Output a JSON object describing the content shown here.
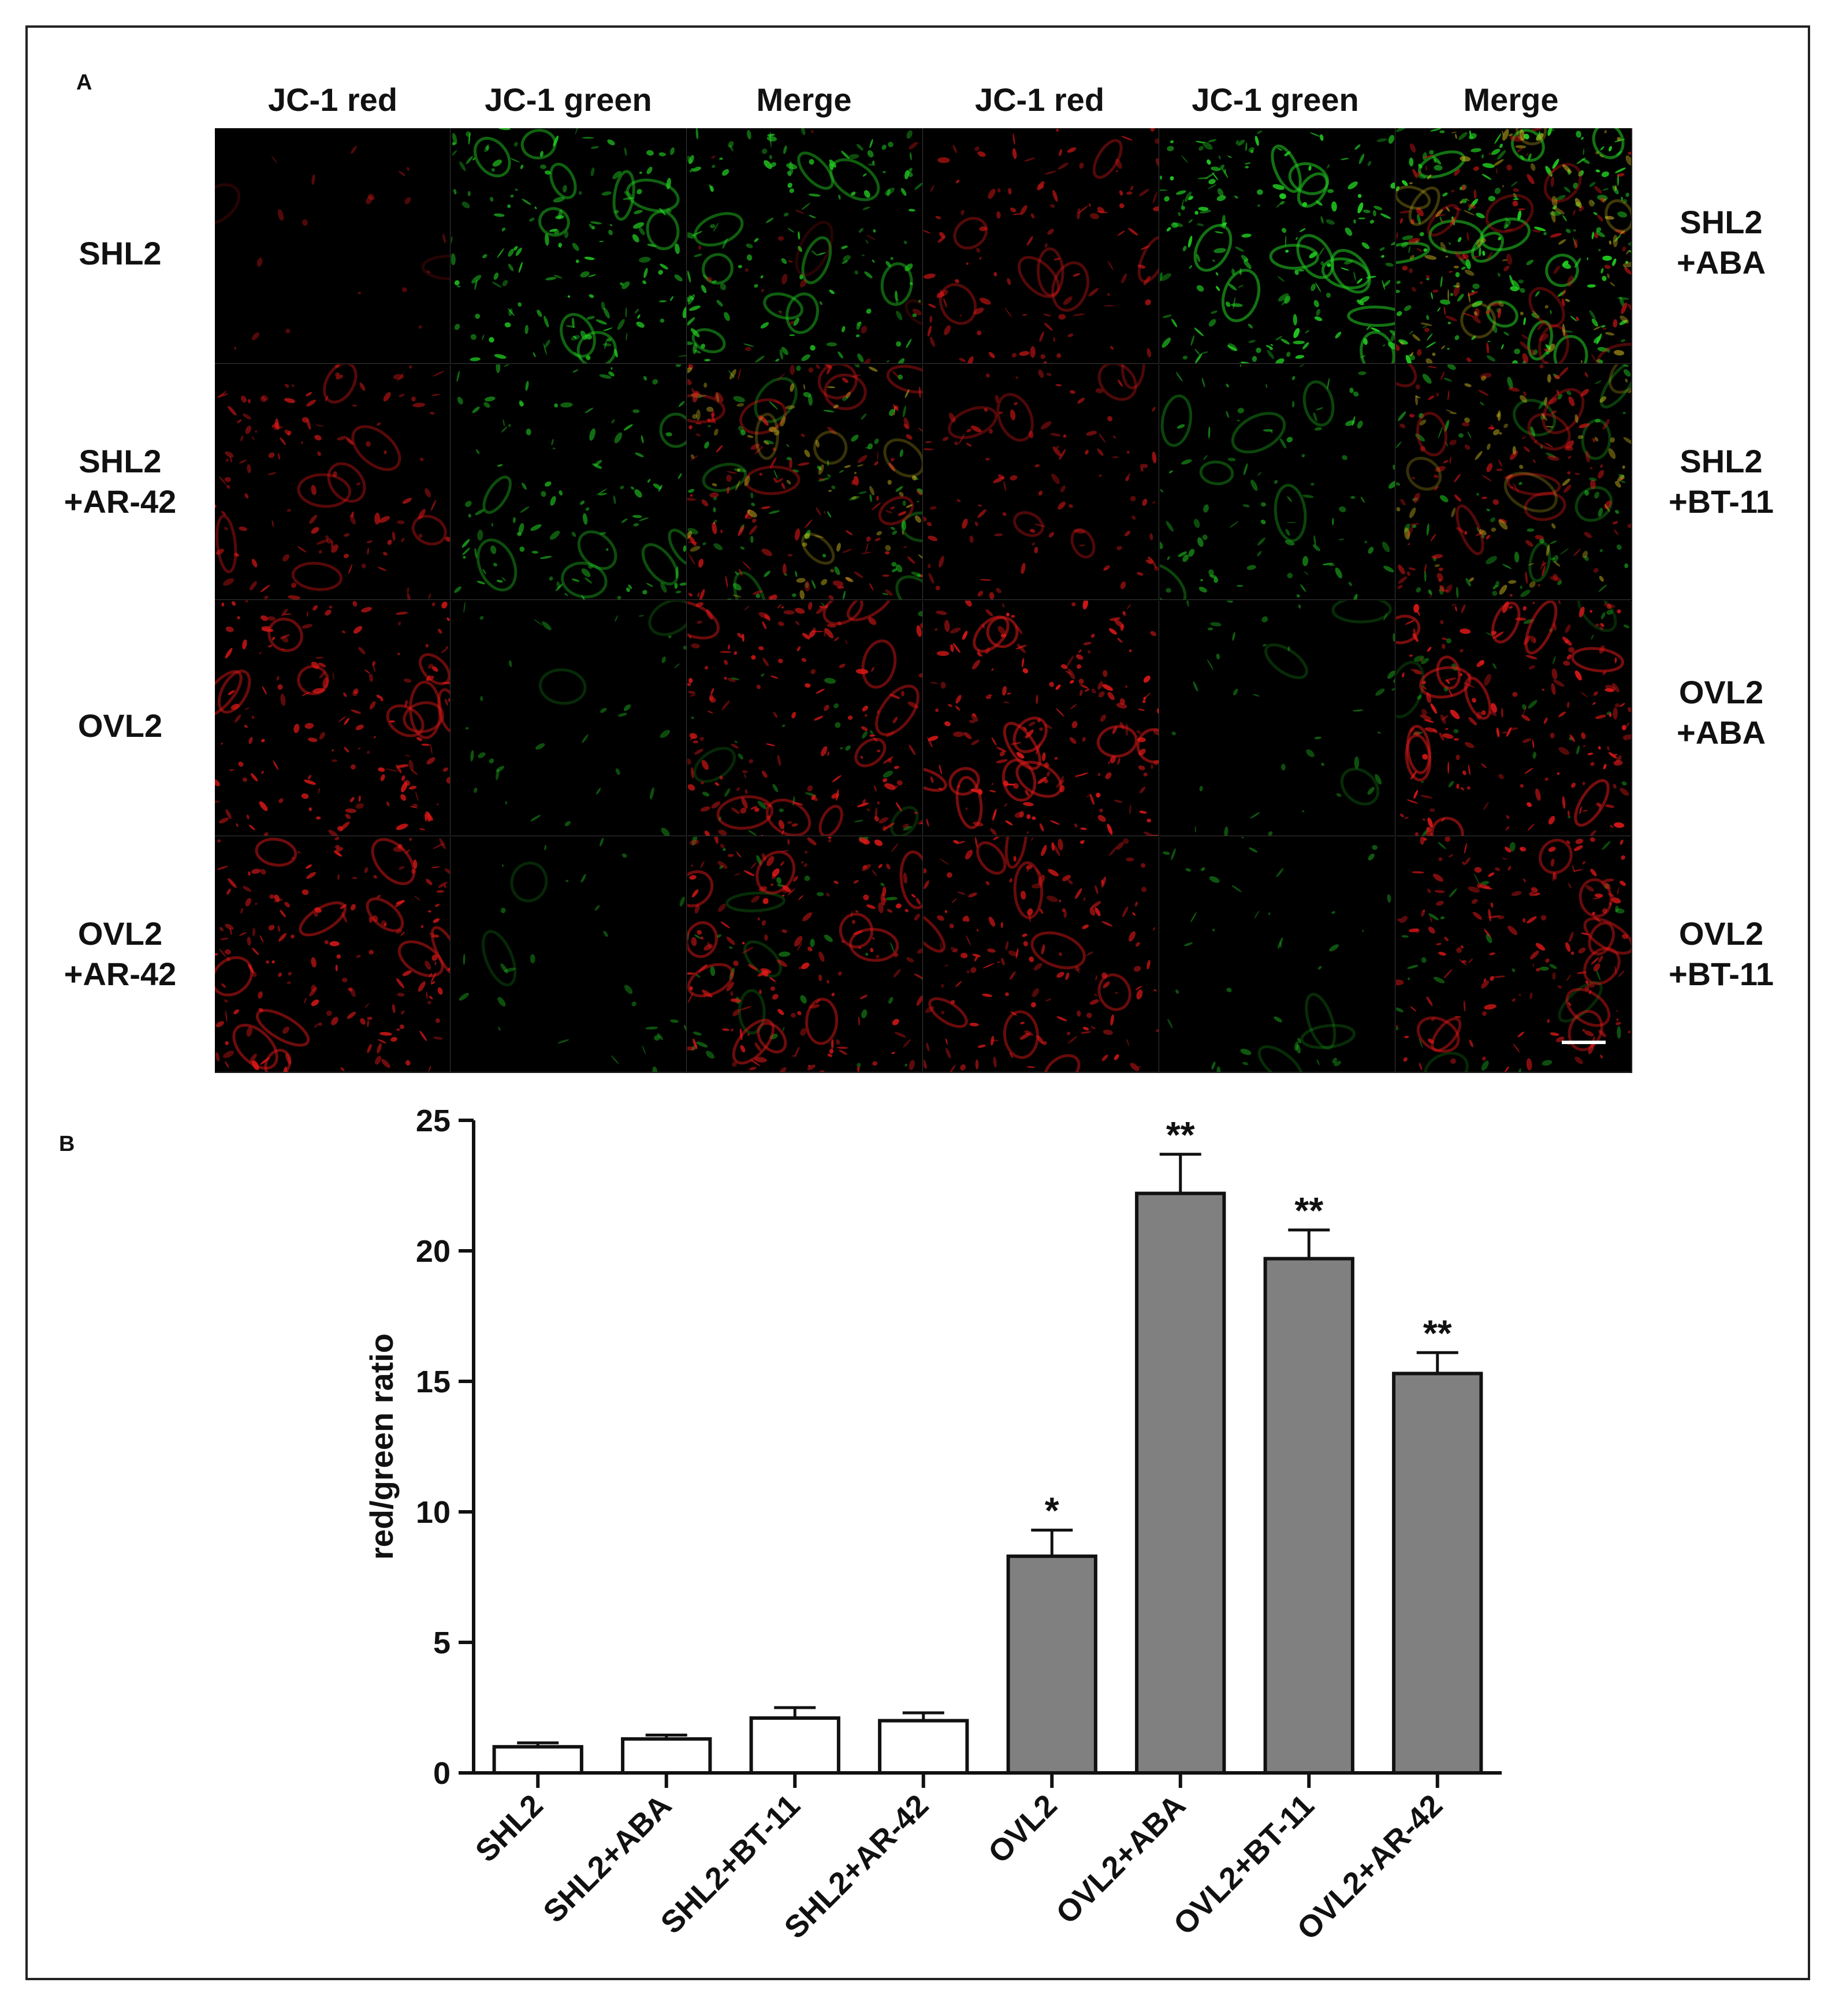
{
  "panel_a": {
    "label": "A",
    "column_headers": [
      "JC-1 red",
      "JC-1 green",
      "Merge",
      "JC-1 red",
      "JC-1 green",
      "Merge"
    ],
    "left_row_labels": [
      [
        "SHL2"
      ],
      [
        "SHL2",
        "+AR-42"
      ],
      [
        "OVL2"
      ],
      [
        "OVL2",
        "+AR-42"
      ]
    ],
    "right_row_labels": [
      [
        "SHL2",
        "+ABA"
      ],
      [
        "SHL2",
        "+BT-11"
      ],
      [
        "OVL2",
        "+ABA"
      ],
      [
        "OVL2",
        "+BT-11"
      ]
    ],
    "colors": {
      "red_channel": "#e01818",
      "green_channel": "#22d022",
      "merge_yellow": "#d8c020",
      "background": "#000000"
    }
  },
  "panel_b": {
    "label": "B"
  },
  "chart_data": {
    "type": "bar",
    "categories": [
      "SHL2",
      "SHL2+ABA",
      "SHL2+BT-11",
      "SHL2+AR-42",
      "OVL2",
      "OVL2+ABA",
      "OVL2+BT-11",
      "OVL2+AR-42"
    ],
    "values": [
      1.0,
      1.3,
      2.1,
      2.0,
      8.3,
      22.2,
      19.7,
      15.3
    ],
    "errors": [
      0.15,
      0.15,
      0.4,
      0.3,
      1.0,
      1.5,
      1.1,
      0.8
    ],
    "significance": [
      "",
      "",
      "",
      "",
      "*",
      "**",
      "**",
      "**"
    ],
    "bar_colors": [
      "#ffffff",
      "#ffffff",
      "#ffffff",
      "#ffffff",
      "#808080",
      "#808080",
      "#808080",
      "#808080"
    ],
    "ylabel": "red/green ratio",
    "xlabel": "",
    "ylim": [
      0,
      25
    ],
    "yticks": [
      0,
      5,
      10,
      15,
      20,
      25
    ],
    "grid": false
  }
}
